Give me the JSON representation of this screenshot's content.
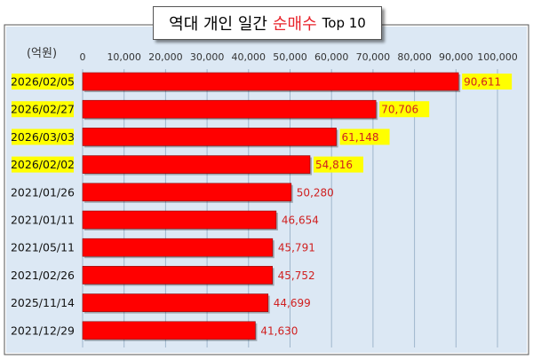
{
  "chart_data": {
    "type": "bar",
    "orientation": "horizontal",
    "title": {
      "prefix": "역대 개인 일간",
      "accent": "순매수",
      "suffix": "Top 10"
    },
    "unit_label": "(억원)",
    "xlim": [
      0,
      100000
    ],
    "x_ticks": [
      "0",
      "10,000",
      "20,000",
      "30,000",
      "40,000",
      "50,000",
      "60,000",
      "70,000",
      "80,000",
      "90,000",
      "100,000"
    ],
    "grid": true,
    "categories": [
      "2026/02/05",
      "2026/02/27",
      "2026/03/03",
      "2026/02/02",
      "2021/01/26",
      "2021/01/11",
      "2021/05/11",
      "2021/02/26",
      "2025/11/14",
      "2021/12/29"
    ],
    "values": [
      90611,
      70706,
      61148,
      54816,
      50280,
      46654,
      45791,
      45752,
      44699,
      41630
    ],
    "value_labels": [
      "90,611",
      "70,706",
      "61,148",
      "54,816",
      "50,280",
      "46,654",
      "45,791",
      "45,752",
      "44,699",
      "41,630"
    ],
    "highlighted_count": 4,
    "colors": {
      "bar": "#ff0000",
      "bar_edge": "#8b0000",
      "value_label": "#d02020",
      "highlight": "#ffff00",
      "plot_background": "#dce8f4",
      "title_accent": "#e8222a",
      "frame": "#555555"
    }
  }
}
